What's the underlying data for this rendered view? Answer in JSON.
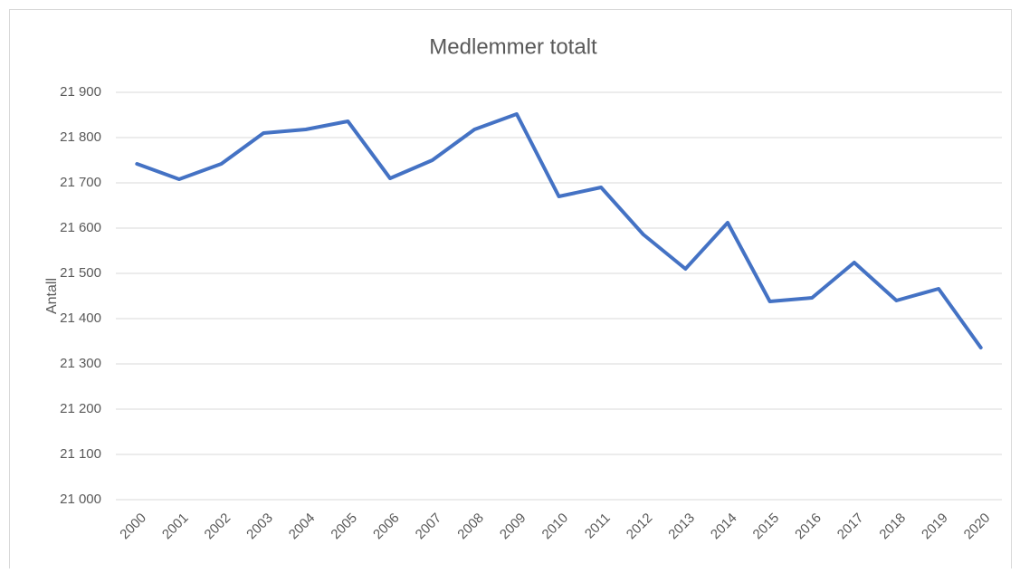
{
  "chart_data": {
    "type": "line",
    "title": "Medlemmer totalt",
    "y_label": "Antall",
    "categories": [
      "2000",
      "2001",
      "2002",
      "2003",
      "2004",
      "2005",
      "2006",
      "2007",
      "2008",
      "2009",
      "2010",
      "2011",
      "2012",
      "2013",
      "2014",
      "2015",
      "2016",
      "2017",
      "2018",
      "2019",
      "2020"
    ],
    "series": [
      {
        "name": "Medlemmer totalt",
        "color": "#4472c4",
        "values": [
          21742,
          21708,
          21742,
          21810,
          21818,
          21836,
          21710,
          21750,
          21818,
          21852,
          21670,
          21690,
          21586,
          21510,
          21612,
          21438,
          21446,
          21524,
          21440,
          21466,
          21336
        ]
      }
    ],
    "ylim": [
      21000,
      21900
    ],
    "yticks": [
      {
        "value": 21000,
        "label": "21 000"
      },
      {
        "value": 21100,
        "label": "21 100"
      },
      {
        "value": 21200,
        "label": "21 200"
      },
      {
        "value": 21300,
        "label": "21 300"
      },
      {
        "value": 21400,
        "label": "21 400"
      },
      {
        "value": 21500,
        "label": "21 500"
      },
      {
        "value": 21600,
        "label": "21 600"
      },
      {
        "value": 21700,
        "label": "21 700"
      },
      {
        "value": 21800,
        "label": "21 800"
      },
      {
        "value": 21900,
        "label": "21 900"
      }
    ],
    "grid": true
  }
}
